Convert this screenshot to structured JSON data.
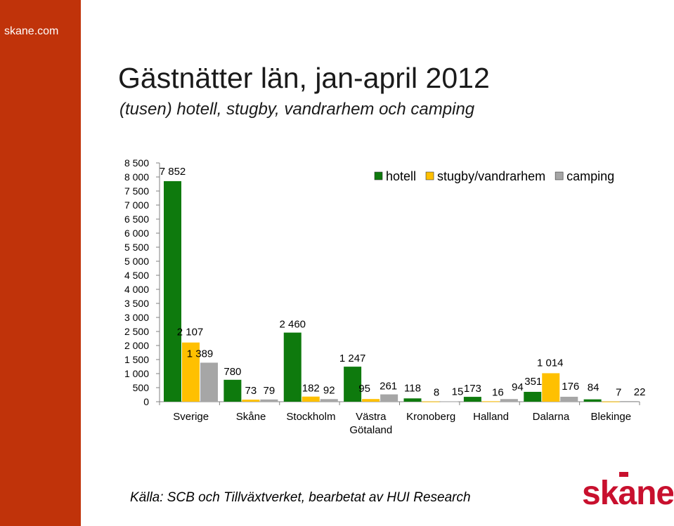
{
  "site": {
    "label": "skane.com"
  },
  "header": {
    "title": "Gästnätter län, jan-april 2012",
    "subtitle": "(tusen) hotell, stugby, vandrarhem och camping"
  },
  "footer": {
    "source": "Källa: SCB och Tillväxtverket, bearbetat av HUI Research",
    "logo_text": "skane"
  },
  "colors": {
    "sidebar": "#c0330a",
    "hotell": "#0e7a0d",
    "stugby": "#ffc000",
    "camping": "#a6a6a6",
    "logo": "#c8102e"
  },
  "chart_data": {
    "type": "bar",
    "title": "Gästnätter län, jan-april 2012",
    "subtitle": "(tusen) hotell, stugby, vandrarhem och camping",
    "categories": [
      [
        "Sverige"
      ],
      [
        "Skåne"
      ],
      [
        "Stockholm"
      ],
      [
        "Västra",
        "Götaland"
      ],
      [
        "Kronoberg"
      ],
      [
        "Halland"
      ],
      [
        "Dalarna"
      ],
      [
        "Blekinge"
      ]
    ],
    "series": [
      {
        "name": "hotell",
        "color": "#0e7a0d",
        "values": [
          7852,
          780,
          2460,
          1247,
          118,
          173,
          351,
          84
        ],
        "labels": [
          "7 852",
          "780",
          "2 460",
          "1 247",
          "118",
          "173",
          "351",
          "84"
        ]
      },
      {
        "name": "stugby/vandrarhem",
        "color": "#ffc000",
        "values": [
          2107,
          73,
          182,
          95,
          8,
          16,
          1014,
          7
        ],
        "labels": [
          "2 107",
          "73",
          "182",
          "95",
          "8",
          "16",
          "1 014",
          "7"
        ]
      },
      {
        "name": "camping",
        "color": "#a6a6a6",
        "values": [
          1389,
          79,
          92,
          261,
          15,
          94,
          176,
          22
        ],
        "labels": [
          "1 389",
          "79",
          "92",
          "261",
          "15",
          "94",
          "176",
          "22"
        ]
      }
    ],
    "ylim": [
      0,
      8500
    ],
    "yticks": [
      0,
      500,
      1000,
      1500,
      2000,
      2500,
      3000,
      3500,
      4000,
      4500,
      5000,
      5500,
      6000,
      6500,
      7000,
      7500,
      8000,
      8500
    ],
    "ytick_labels": [
      "0",
      "500",
      "1 000",
      "1 500",
      "2 000",
      "2 500",
      "3 000",
      "3 500",
      "4 000",
      "4 500",
      "5 000",
      "5 500",
      "6 000",
      "6 500",
      "7 000",
      "7 500",
      "8 000",
      "8 500"
    ],
    "legend_position": "top-right",
    "grid": false
  }
}
